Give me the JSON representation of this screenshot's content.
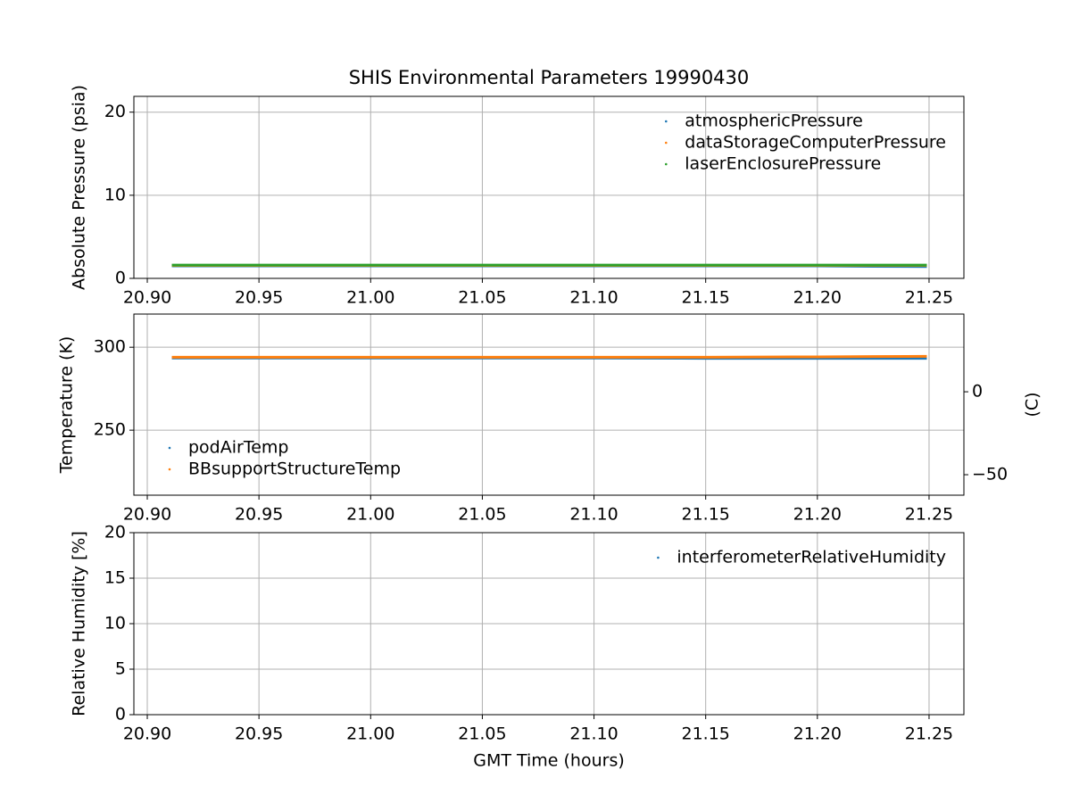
{
  "chart_data": [
    {
      "type": "line",
      "title": "SHIS Environmental Parameters 19990430",
      "ylabel": "Absolute Pressure (psia)",
      "x": [
        20.911,
        20.95,
        21.0,
        21.05,
        21.1,
        21.15,
        21.2,
        21.225,
        21.249
      ],
      "series": [
        {
          "name": "atmosphericPressure",
          "color": "#1f77b4",
          "values": [
            1.5,
            1.5,
            1.5,
            1.5,
            1.5,
            1.5,
            1.5,
            1.45,
            1.42
          ]
        },
        {
          "name": "dataStorageComputerPressure",
          "color": "#ff7f0e",
          "values": [
            1.55,
            1.55,
            1.55,
            1.55,
            1.55,
            1.55,
            1.55,
            1.55,
            1.55
          ]
        },
        {
          "name": "laserEnclosurePressure",
          "color": "#2ca02c",
          "values": [
            1.6,
            1.6,
            1.6,
            1.6,
            1.6,
            1.6,
            1.6,
            1.6,
            1.6
          ]
        }
      ],
      "xlim": [
        20.894,
        21.2656
      ],
      "xticks": [
        {
          "value": 20.9,
          "label": "20.90"
        },
        20.95,
        {
          "value": 21.0,
          "label": "21.00"
        },
        21.05,
        {
          "value": 21.1,
          "label": "21.10"
        },
        21.15,
        {
          "value": 21.2,
          "label": "21.20"
        },
        21.25
      ],
      "ylim": [
        0,
        21.9
      ],
      "yticks": [
        0,
        10,
        20
      ],
      "grid": true,
      "legend": "upper right"
    },
    {
      "type": "line",
      "ylabel": "Temperature (K)",
      "y2label": "(C)",
      "x": [
        20.911,
        20.95,
        21.0,
        21.05,
        21.1,
        21.15,
        21.2,
        21.225,
        21.249
      ],
      "series": [
        {
          "name": "podAirTemp",
          "color": "#1f77b4",
          "values": [
            293.5,
            293.5,
            293.5,
            293.5,
            293.5,
            293.3,
            293.3,
            293.3,
            293.3
          ]
        },
        {
          "name": "BBsupportStructureTemp",
          "color": "#ff7f0e",
          "values": [
            294.0,
            294.0,
            294.0,
            294.0,
            294.0,
            294.0,
            294.2,
            294.4,
            294.5
          ]
        }
      ],
      "xlim": [
        20.894,
        21.2656
      ],
      "xticks": [
        {
          "value": 20.9,
          "label": "20.90"
        },
        20.95,
        {
          "value": 21.0,
          "label": "21.00"
        },
        21.05,
        {
          "value": 21.1,
          "label": "21.10"
        },
        21.15,
        {
          "value": 21.2,
          "label": "21.20"
        },
        21.25
      ],
      "ylim": [
        210.8,
        320
      ],
      "yticks": [
        250,
        300
      ],
      "y2lim": [
        -62.35,
        46.85
      ],
      "y2ticks": [
        {
          "value": -50,
          "label": "−50"
        },
        0
      ],
      "grid": true,
      "legend": "lower left"
    },
    {
      "type": "line",
      "ylabel": "Relative Humidity [%]",
      "xlabel": "GMT Time (hours)",
      "x": [
        20.911,
        20.95,
        21.0,
        21.05,
        21.1,
        21.15,
        21.2,
        21.225,
        21.249
      ],
      "series": [
        {
          "name": "interferometerRelativeHumidity",
          "color": "#1f77b4",
          "values": [
            null,
            null,
            null,
            null,
            null,
            null,
            null,
            null,
            null
          ]
        }
      ],
      "xlim": [
        20.894,
        21.2656
      ],
      "xticks": [
        {
          "value": 20.9,
          "label": "20.90"
        },
        20.95,
        {
          "value": 21.0,
          "label": "21.00"
        },
        21.05,
        {
          "value": 21.1,
          "label": "21.10"
        },
        21.15,
        {
          "value": 21.2,
          "label": "21.20"
        },
        21.25
      ],
      "ylim": [
        0,
        20
      ],
      "yticks": [
        0,
        5,
        10,
        15,
        20
      ],
      "grid": true,
      "legend": "upper right"
    }
  ]
}
